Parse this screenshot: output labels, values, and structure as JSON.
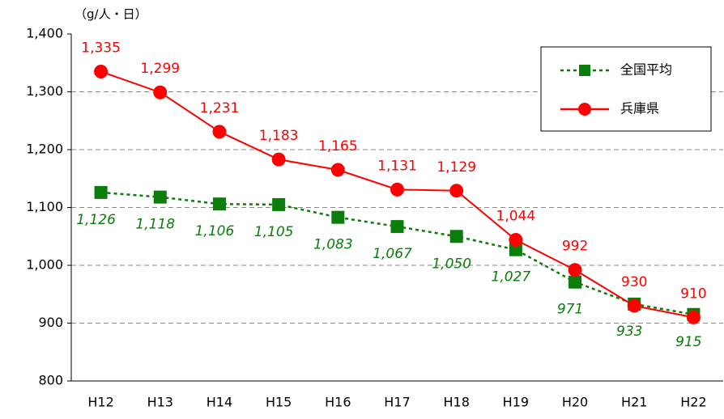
{
  "chart_data": {
    "type": "line",
    "y_label": "（g/人・日）",
    "categories": [
      "H12",
      "H13",
      "H14",
      "H15",
      "H16",
      "H17",
      "H18",
      "H19",
      "H20",
      "H21",
      "H22"
    ],
    "series": [
      {
        "name": "全国平均",
        "color": "#0a7d0a",
        "dashed": true,
        "marker": "square",
        "label_position": "below",
        "values": [
          1126,
          1118,
          1106,
          1105,
          1083,
          1067,
          1050,
          1027,
          971,
          933,
          915
        ],
        "value_labels": [
          "1,126",
          "1,118",
          "1,106",
          "1,105",
          "1,083",
          "1,067",
          "1,050",
          "1,027",
          "971",
          "933",
          "915"
        ]
      },
      {
        "name": "兵庫県",
        "color": "#ff0000",
        "dashed": false,
        "marker": "circle",
        "label_position": "above",
        "values": [
          1335,
          1299,
          1231,
          1183,
          1165,
          1131,
          1129,
          1044,
          992,
          930,
          910
        ],
        "value_labels": [
          "1,335",
          "1,299",
          "1,231",
          "1,183",
          "1,165",
          "1,131",
          "1,129",
          "1,044",
          "992",
          "930",
          "910"
        ]
      }
    ],
    "ylim": [
      800,
      1400
    ],
    "yticks": [
      800,
      900,
      {
        "value": 1000,
        "label": "1,000"
      },
      {
        "value": 1100,
        "label": "1,100"
      },
      {
        "value": 1200,
        "label": "1,200"
      },
      {
        "value": 1300,
        "label": "1,300"
      },
      {
        "value": 1400,
        "label": "1,400"
      }
    ],
    "grid": true,
    "legend": "upper right"
  }
}
